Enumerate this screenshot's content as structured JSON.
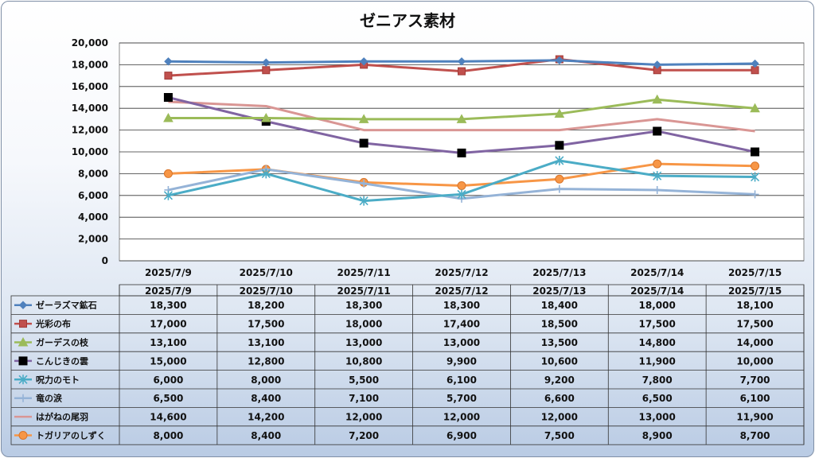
{
  "chart_data": {
    "type": "line",
    "title": "ゼニアス素材",
    "categories": [
      "2025/7/9",
      "2025/7/10",
      "2025/7/11",
      "2025/7/12",
      "2025/7/13",
      "2025/7/14",
      "2025/7/15"
    ],
    "ylim": [
      0,
      20000
    ],
    "yticks": [
      "20,000",
      "18,000",
      "16,000",
      "14,000",
      "12,000",
      "10,000",
      "8,000",
      "6,000",
      "4,000",
      "2,000",
      "0"
    ],
    "grid": true,
    "legend": "data-table",
    "series": [
      {
        "name": "ゼーラズマ鉱石",
        "color": "#4f81bd",
        "marker": "diamond",
        "values": [
          18300,
          18200,
          18300,
          18300,
          18400,
          18000,
          18100
        ],
        "labels": [
          "18,300",
          "18,200",
          "18,300",
          "18,300",
          "18,400",
          "18,000",
          "18,100"
        ]
      },
      {
        "name": "光彩の布",
        "color": "#c0504d",
        "marker": "square",
        "values": [
          17000,
          17500,
          18000,
          17400,
          18500,
          17500,
          17500
        ],
        "labels": [
          "17,000",
          "17,500",
          "18,000",
          "17,400",
          "18,500",
          "17,500",
          "17,500"
        ]
      },
      {
        "name": "ガーデスの枝",
        "color": "#9bbb59",
        "marker": "triangle",
        "values": [
          13100,
          13100,
          13000,
          13000,
          13500,
          14800,
          14000
        ],
        "labels": [
          "13,100",
          "13,100",
          "13,000",
          "13,000",
          "13,500",
          "14,800",
          "14,000"
        ]
      },
      {
        "name": "こんじきの雲",
        "color": "#8064a2",
        "marker": "bigsquare",
        "values": [
          15000,
          12800,
          10800,
          9900,
          10600,
          11900,
          10000
        ],
        "labels": [
          "15,000",
          "12,800",
          "10,800",
          "9,900",
          "10,600",
          "11,900",
          "10,000"
        ]
      },
      {
        "name": "呪力のモト",
        "color": "#4bacc6",
        "marker": "star",
        "values": [
          6000,
          8000,
          5500,
          6100,
          9200,
          7800,
          7700
        ],
        "labels": [
          "6,000",
          "8,000",
          "5,500",
          "6,100",
          "9,200",
          "7,800",
          "7,700"
        ]
      },
      {
        "name": "竜の涙",
        "color": "#95b3d7",
        "marker": "plus",
        "values": [
          6500,
          8400,
          7100,
          5700,
          6600,
          6500,
          6100
        ],
        "labels": [
          "6,500",
          "8,400",
          "7,100",
          "5,700",
          "6,600",
          "6,500",
          "6,100"
        ]
      },
      {
        "name": "はがねの尾羽",
        "color": "#d99694",
        "marker": "none",
        "values": [
          14600,
          14200,
          12000,
          12000,
          12000,
          13000,
          11900
        ],
        "labels": [
          "14,600",
          "14,200",
          "12,000",
          "12,000",
          "12,000",
          "13,000",
          "11,900"
        ]
      },
      {
        "name": "トガリアのしずく",
        "color": "#f79646",
        "marker": "circle",
        "values": [
          8000,
          8400,
          7200,
          6900,
          7500,
          8900,
          8700
        ],
        "labels": [
          "8,000",
          "8,400",
          "7,200",
          "6,900",
          "7,500",
          "8,900",
          "8,700"
        ]
      }
    ]
  }
}
